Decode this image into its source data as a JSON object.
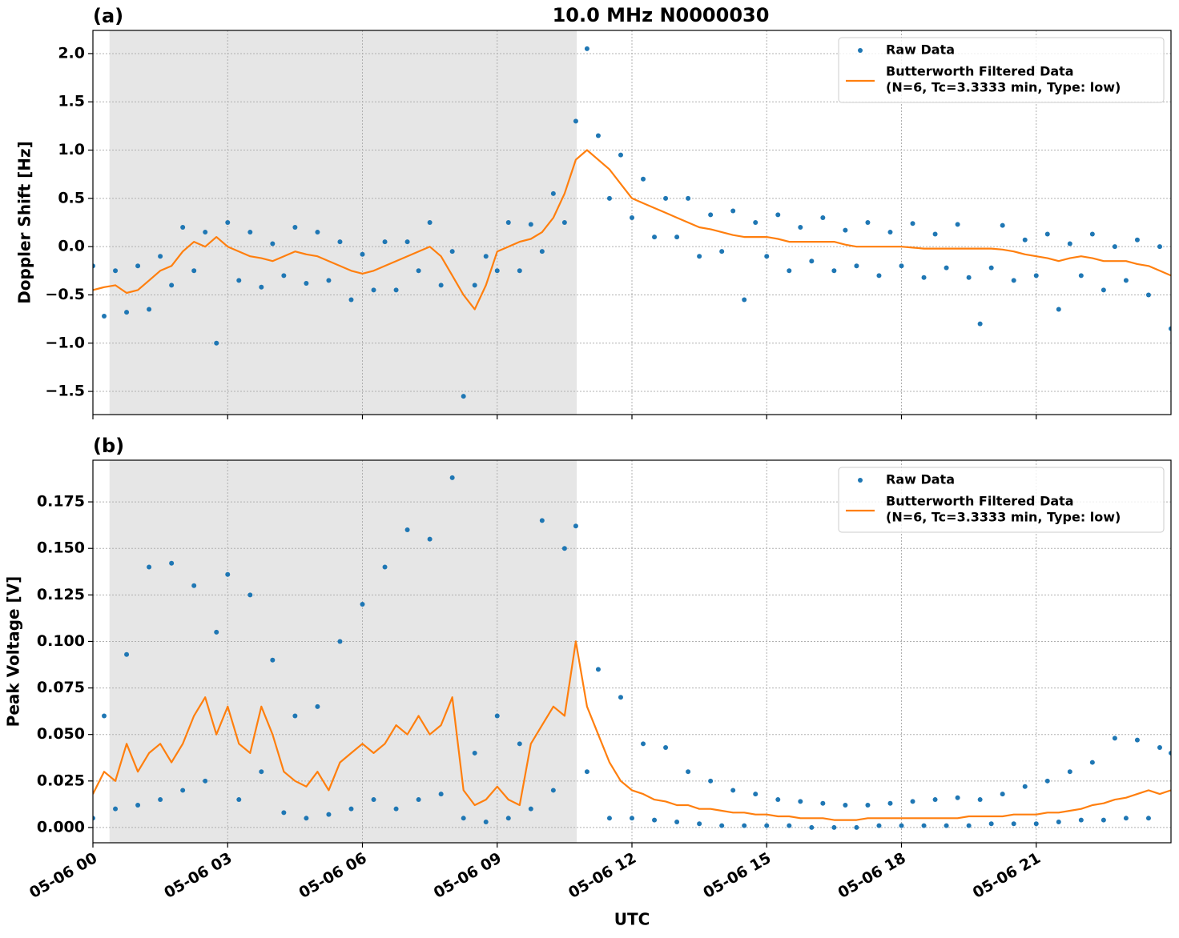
{
  "chart_data": [
    {
      "type": "scatter",
      "title": "10.0 MHz N0000030",
      "panel_label": "(a)",
      "y_label": "Doppler Shift [Hz]",
      "xlim": [
        0,
        24
      ],
      "ylim": [
        -1.74,
        2.24
      ],
      "shaded_span": [
        0.37,
        10.77
      ],
      "grid": true,
      "legend": "upper right",
      "xticks": [
        0,
        3,
        6,
        9,
        12,
        15,
        18,
        21
      ],
      "yticks": [
        {
          "value": -1.5,
          "label": "−1.5"
        },
        {
          "value": -1.0,
          "label": "−1.0"
        },
        {
          "value": -0.5,
          "label": "−0.5"
        },
        {
          "value": 0.0,
          "label": "0.0"
        },
        {
          "value": 0.5,
          "label": "0.5"
        },
        {
          "value": 1.0,
          "label": "1.0"
        },
        {
          "value": 1.5,
          "label": "1.5"
        },
        {
          "value": 2.0,
          "label": "2.0"
        }
      ],
      "x": [
        0,
        0.25,
        0.5,
        0.75,
        1,
        1.25,
        1.5,
        1.75,
        2,
        2.25,
        2.5,
        2.75,
        3,
        3.25,
        3.5,
        3.75,
        4,
        4.25,
        4.5,
        4.75,
        5,
        5.25,
        5.5,
        5.75,
        6,
        6.25,
        6.5,
        6.75,
        7,
        7.25,
        7.5,
        7.75,
        8,
        8.25,
        8.5,
        8.75,
        9,
        9.25,
        9.5,
        9.75,
        10,
        10.25,
        10.5,
        10.75,
        11,
        11.25,
        11.5,
        11.75,
        12,
        12.25,
        12.5,
        12.75,
        13,
        13.25,
        13.5,
        13.75,
        14,
        14.25,
        14.5,
        14.75,
        15,
        15.25,
        15.5,
        15.75,
        16,
        16.25,
        16.5,
        16.75,
        17,
        17.25,
        17.5,
        17.75,
        18,
        18.25,
        18.5,
        18.75,
        19,
        19.25,
        19.5,
        19.75,
        20,
        20.25,
        20.5,
        20.75,
        21,
        21.25,
        21.5,
        21.75,
        22,
        22.25,
        22.5,
        22.75,
        23,
        23.25,
        23.5,
        23.75,
        24
      ],
      "series": [
        {
          "name": "Raw Data",
          "mode": "markers",
          "color": "#1f77b4",
          "values": [
            -0.2,
            -0.72,
            -0.25,
            -0.68,
            -0.2,
            -0.65,
            -0.1,
            -0.4,
            0.2,
            -0.25,
            0.15,
            -1.0,
            0.25,
            -0.35,
            0.15,
            -0.42,
            0.03,
            -0.3,
            0.2,
            -0.38,
            0.15,
            -0.35,
            0.05,
            -0.55,
            -0.08,
            -0.45,
            0.05,
            -0.45,
            0.05,
            -0.25,
            0.25,
            -0.4,
            -0.05,
            -1.55,
            -0.4,
            -0.1,
            -0.25,
            0.25,
            -0.25,
            0.23,
            -0.05,
            0.55,
            0.25,
            1.3,
            2.05,
            1.15,
            0.5,
            0.95,
            0.3,
            0.7,
            0.1,
            0.5,
            0.1,
            0.5,
            -0.1,
            0.33,
            -0.05,
            0.37,
            -0.55,
            0.25,
            -0.1,
            0.33,
            -0.25,
            0.2,
            -0.15,
            0.3,
            -0.25,
            0.17,
            -0.2,
            0.25,
            -0.3,
            0.15,
            -0.2,
            0.24,
            -0.32,
            0.13,
            -0.22,
            0.23,
            -0.32,
            -0.8,
            -0.22,
            0.22,
            -0.35,
            0.07,
            -0.3,
            0.13,
            -0.65,
            0.03,
            -0.3,
            0.13,
            -0.45,
            0.0,
            -0.35,
            0.07,
            -0.5,
            0.0,
            -0.85
          ]
        },
        {
          "name": "Butterworth Filtered Data",
          "legend_note": "(N=6, Tc=3.3333 min, Type: low)",
          "mode": "line",
          "color": "#ff7f0e",
          "values": [
            -0.45,
            -0.42,
            -0.4,
            -0.48,
            -0.45,
            -0.35,
            -0.25,
            -0.2,
            -0.05,
            0.05,
            0.0,
            0.1,
            0.0,
            -0.05,
            -0.1,
            -0.12,
            -0.15,
            -0.1,
            -0.05,
            -0.08,
            -0.1,
            -0.15,
            -0.2,
            -0.25,
            -0.28,
            -0.25,
            -0.2,
            -0.15,
            -0.1,
            -0.05,
            0.0,
            -0.1,
            -0.3,
            -0.5,
            -0.65,
            -0.4,
            -0.05,
            0.0,
            0.05,
            0.08,
            0.15,
            0.3,
            0.55,
            0.9,
            1.0,
            0.9,
            0.8,
            0.65,
            0.5,
            0.45,
            0.4,
            0.35,
            0.3,
            0.25,
            0.2,
            0.18,
            0.15,
            0.12,
            0.1,
            0.1,
            0.1,
            0.08,
            0.05,
            0.05,
            0.05,
            0.05,
            0.05,
            0.02,
            0.0,
            0.0,
            0.0,
            0.0,
            0.0,
            -0.01,
            -0.02,
            -0.02,
            -0.02,
            -0.02,
            -0.02,
            -0.02,
            -0.02,
            -0.03,
            -0.05,
            -0.08,
            -0.1,
            -0.12,
            -0.15,
            -0.12,
            -0.1,
            -0.12,
            -0.15,
            -0.15,
            -0.15,
            -0.18,
            -0.2,
            -0.25,
            -0.3
          ]
        }
      ]
    },
    {
      "type": "scatter",
      "panel_label": "(b)",
      "y_label": "Peak Voltage [V]",
      "x_label": "UTC",
      "xlim": [
        0,
        24
      ],
      "ylim": [
        -0.0082,
        0.1974
      ],
      "shaded_span": [
        0.37,
        10.77
      ],
      "grid": true,
      "legend": "upper right",
      "xticks": [
        {
          "value": 0,
          "label": "05-06 00"
        },
        {
          "value": 3,
          "label": "05-06 03"
        },
        {
          "value": 6,
          "label": "05-06 06"
        },
        {
          "value": 9,
          "label": "05-06 09"
        },
        {
          "value": 12,
          "label": "05-06 12"
        },
        {
          "value": 15,
          "label": "05-06 15"
        },
        {
          "value": 18,
          "label": "05-06 18"
        },
        {
          "value": 21,
          "label": "05-06 21"
        }
      ],
      "yticks": [
        {
          "value": 0.0,
          "label": "0.000"
        },
        {
          "value": 0.025,
          "label": "0.025"
        },
        {
          "value": 0.05,
          "label": "0.050"
        },
        {
          "value": 0.075,
          "label": "0.075"
        },
        {
          "value": 0.1,
          "label": "0.100"
        },
        {
          "value": 0.125,
          "label": "0.125"
        },
        {
          "value": 0.15,
          "label": "0.150"
        },
        {
          "value": 0.175,
          "label": "0.175"
        }
      ],
      "x": [
        0,
        0.25,
        0.5,
        0.75,
        1,
        1.25,
        1.5,
        1.75,
        2,
        2.25,
        2.5,
        2.75,
        3,
        3.25,
        3.5,
        3.75,
        4,
        4.25,
        4.5,
        4.75,
        5,
        5.25,
        5.5,
        5.75,
        6,
        6.25,
        6.5,
        6.75,
        7,
        7.25,
        7.5,
        7.75,
        8,
        8.25,
        8.5,
        8.75,
        9,
        9.25,
        9.5,
        9.75,
        10,
        10.25,
        10.5,
        10.75,
        11,
        11.25,
        11.5,
        11.75,
        12,
        12.25,
        12.5,
        12.75,
        13,
        13.25,
        13.5,
        13.75,
        14,
        14.25,
        14.5,
        14.75,
        15,
        15.25,
        15.5,
        15.75,
        16,
        16.25,
        16.5,
        16.75,
        17,
        17.25,
        17.5,
        17.75,
        18,
        18.25,
        18.5,
        18.75,
        19,
        19.25,
        19.5,
        19.75,
        20,
        20.25,
        20.5,
        20.75,
        21,
        21.25,
        21.5,
        21.75,
        22,
        22.25,
        22.5,
        22.75,
        23,
        23.25,
        23.5,
        23.75,
        24
      ],
      "series": [
        {
          "name": "Raw Data",
          "mode": "markers",
          "color": "#1f77b4",
          "values": [
            0.005,
            0.06,
            0.01,
            0.093,
            0.012,
            0.14,
            0.015,
            0.142,
            0.02,
            0.13,
            0.025,
            0.105,
            0.136,
            0.015,
            0.125,
            0.03,
            0.09,
            0.008,
            0.06,
            0.005,
            0.065,
            0.007,
            0.1,
            0.01,
            0.12,
            0.015,
            0.14,
            0.01,
            0.16,
            0.015,
            0.155,
            0.018,
            0.188,
            0.005,
            0.04,
            0.003,
            0.06,
            0.005,
            0.045,
            0.01,
            0.165,
            0.02,
            0.15,
            0.162,
            0.03,
            0.085,
            0.005,
            0.07,
            0.005,
            0.045,
            0.004,
            0.043,
            0.003,
            0.03,
            0.002,
            0.025,
            0.001,
            0.02,
            0.001,
            0.018,
            0.001,
            0.015,
            0.001,
            0.014,
            0.0,
            0.013,
            0.0,
            0.012,
            0.0,
            0.012,
            0.001,
            0.013,
            0.001,
            0.014,
            0.001,
            0.015,
            0.001,
            0.016,
            0.001,
            0.015,
            0.002,
            0.018,
            0.002,
            0.022,
            0.002,
            0.025,
            0.003,
            0.03,
            0.004,
            0.035,
            0.004,
            0.048,
            0.005,
            0.047,
            0.005,
            0.043,
            0.04
          ]
        },
        {
          "name": "Butterworth Filtered Data",
          "legend_note": "(N=6, Tc=3.3333 min, Type: low)",
          "mode": "line",
          "color": "#ff7f0e",
          "values": [
            0.018,
            0.03,
            0.025,
            0.045,
            0.03,
            0.04,
            0.045,
            0.035,
            0.045,
            0.06,
            0.07,
            0.05,
            0.065,
            0.045,
            0.04,
            0.065,
            0.05,
            0.03,
            0.025,
            0.022,
            0.03,
            0.02,
            0.035,
            0.04,
            0.045,
            0.04,
            0.045,
            0.055,
            0.05,
            0.06,
            0.05,
            0.055,
            0.07,
            0.02,
            0.012,
            0.015,
            0.022,
            0.015,
            0.012,
            0.045,
            0.055,
            0.065,
            0.06,
            0.1,
            0.065,
            0.05,
            0.035,
            0.025,
            0.02,
            0.018,
            0.015,
            0.014,
            0.012,
            0.012,
            0.01,
            0.01,
            0.009,
            0.008,
            0.008,
            0.007,
            0.007,
            0.006,
            0.006,
            0.005,
            0.005,
            0.005,
            0.004,
            0.004,
            0.004,
            0.005,
            0.005,
            0.005,
            0.005,
            0.005,
            0.005,
            0.005,
            0.005,
            0.005,
            0.006,
            0.006,
            0.006,
            0.006,
            0.007,
            0.007,
            0.007,
            0.008,
            0.008,
            0.009,
            0.01,
            0.012,
            0.013,
            0.015,
            0.016,
            0.018,
            0.02,
            0.018,
            0.02
          ]
        }
      ]
    }
  ]
}
